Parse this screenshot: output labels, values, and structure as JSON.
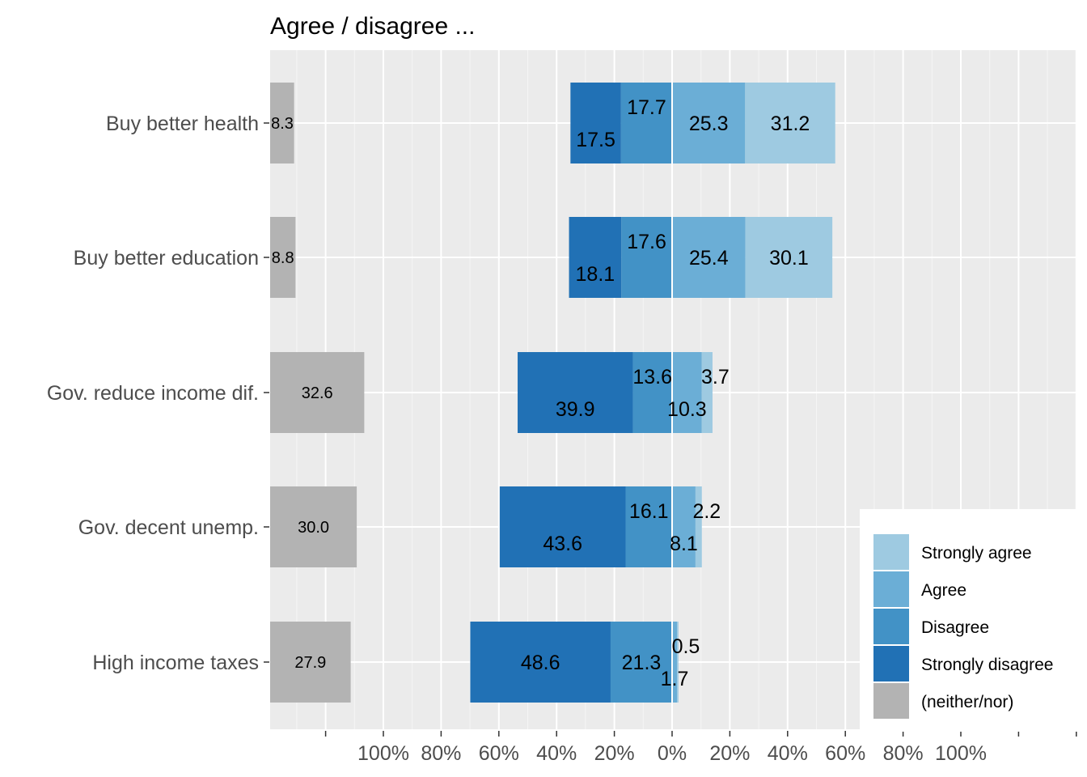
{
  "chart_data": {
    "type": "bar",
    "title": "Agree / disagree ...",
    "xlabel": "",
    "ylabel": "",
    "orientation": "horizontal",
    "stacking": "diverging",
    "categories": [
      "Buy better health",
      "Buy better education",
      "Gov. reduce income dif.",
      "Gov. decent unemp.",
      "High income taxes"
    ],
    "series": [
      {
        "name": "Strongly agree",
        "side": "positive",
        "color": "#9ecae1",
        "values": [
          31.2,
          30.1,
          3.7,
          2.2,
          0.5
        ]
      },
      {
        "name": "Agree",
        "side": "positive",
        "color": "#6baed6",
        "values": [
          25.3,
          25.4,
          10.3,
          8.1,
          1.7
        ]
      },
      {
        "name": "Disagree",
        "side": "negative",
        "color": "#4292c6",
        "values": [
          17.7,
          17.6,
          13.6,
          16.1,
          21.3
        ]
      },
      {
        "name": "Strongly disagree",
        "side": "negative",
        "color": "#2171b5",
        "values": [
          17.5,
          18.1,
          39.9,
          43.6,
          48.6
        ]
      },
      {
        "name": "(neither/nor)",
        "side": "separate",
        "color": "#b3b3b3",
        "values": [
          8.3,
          8.8,
          32.6,
          30.0,
          27.9
        ]
      }
    ],
    "x_ticks": [
      "100%",
      "80%",
      "60%",
      "40%",
      "20%",
      "0%",
      "20%",
      "40%",
      "60%",
      "80%",
      "100%"
    ],
    "x_tick_values": [
      -100,
      -80,
      -60,
      -40,
      -20,
      0,
      20,
      40,
      60,
      80,
      100
    ],
    "xlim": [
      -140,
      140
    ],
    "grid": true,
    "legend_position": "bottom-right",
    "legend_entries": [
      "Strongly agree",
      "Agree",
      "Disagree",
      "Strongly disagree",
      "(neither/nor)"
    ]
  }
}
